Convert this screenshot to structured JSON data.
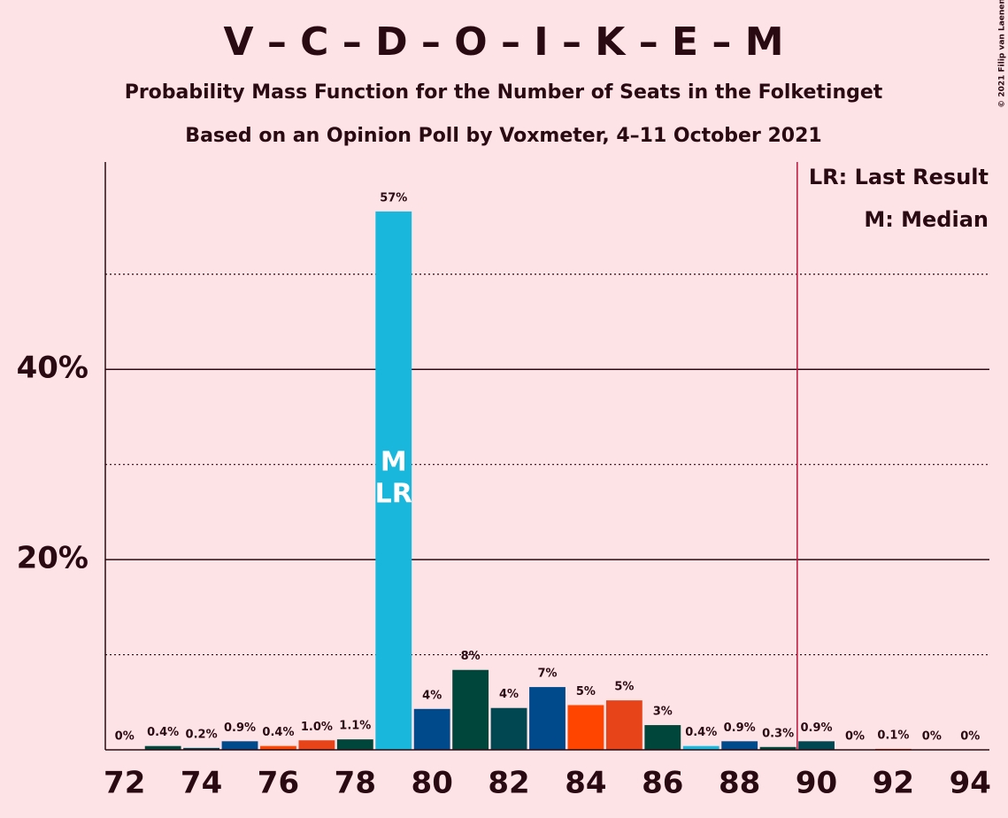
{
  "chart_data": {
    "type": "bar",
    "title": "V – C – D – O – I – K – E – M",
    "subtitle": "Probability Mass Function for the Number of Seats in the Folketinget",
    "subtitle2": "Based on an Opinion Poll by Voxmeter, 4–11 October 2021",
    "copyright": "© 2021 Filip van Laenen",
    "legend": [
      "LR: Last Result",
      "M: Median"
    ],
    "median_label": "M",
    "last_result_label": "LR",
    "median": 79,
    "last_result": 79,
    "majority_line": 89.5,
    "x": [
      72,
      73,
      74,
      75,
      76,
      77,
      78,
      79,
      80,
      81,
      82,
      83,
      84,
      85,
      86,
      87,
      88,
      89,
      90,
      91,
      92,
      93,
      94
    ],
    "values": [
      0,
      0.4,
      0.2,
      0.9,
      0.4,
      1.0,
      1.1,
      56.6,
      4.3,
      8.4,
      4.4,
      6.6,
      4.7,
      5.2,
      2.6,
      0.4,
      0.9,
      0.3,
      0.9,
      0,
      0.1,
      0,
      0
    ],
    "value_labels": [
      "0%",
      "0.4%",
      "0.2%",
      "0.9%",
      "0.4%",
      "1.0%",
      "1.1%",
      "57%",
      "4%",
      "8%",
      "4%",
      "7%",
      "5%",
      "5%",
      "3%",
      "0.4%",
      "0.9%",
      "0.3%",
      "0.9%",
      "0%",
      "0.1%",
      "0%",
      "0%"
    ],
    "colors": [
      "#1ab7dd",
      "#00463a",
      "#004752",
      "#004a8c",
      "#ff4500",
      "#e8441a",
      "#00463a",
      "#1ab7dd",
      "#004a8c",
      "#00463a",
      "#004752",
      "#004a8c",
      "#ff4500",
      "#e8441a",
      "#00463a",
      "#1ab7dd",
      "#004a8c",
      "#00463a",
      "#004752",
      "#004a8c",
      "#ff4500",
      "#e8441a",
      "#00463a"
    ],
    "xlim": [
      71.5,
      94.5
    ],
    "xticks": [
      72,
      74,
      76,
      78,
      80,
      82,
      84,
      86,
      88,
      90,
      92,
      94
    ],
    "ylim": [
      0,
      61.8
    ],
    "yticks": [
      {
        "value": 20,
        "label": "20%"
      },
      {
        "value": 40,
        "label": "40%"
      }
    ],
    "minor_yticks": [
      10,
      30,
      50
    ],
    "grid": true
  }
}
